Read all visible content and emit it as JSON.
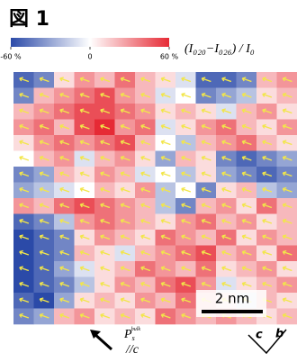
{
  "figure_label": "図 1",
  "chart_data": {
    "type": "heatmap",
    "title": "(I₀₂₀−I₀₂₆) / I₀",
    "colormap": [
      "#2b4aa8",
      "#ffffff",
      "#e62a35"
    ],
    "clim": [
      -60,
      60
    ],
    "cticks": [
      {
        "value": -60,
        "label": "-60 %"
      },
      0,
      {
        "value": 60,
        "label": "60 %"
      }
    ],
    "values": [
      [
        -50,
        -40,
        10,
        30,
        20,
        40,
        20,
        10,
        -10,
        -50,
        -50,
        -40,
        20,
        30
      ],
      [
        -40,
        20,
        30,
        40,
        50,
        30,
        20,
        -10,
        0,
        -40,
        -30,
        -20,
        10,
        20
      ],
      [
        20,
        30,
        40,
        50,
        50,
        40,
        30,
        10,
        20,
        10,
        -10,
        20,
        30,
        10
      ],
      [
        30,
        40,
        20,
        50,
        60,
        30,
        40,
        -10,
        10,
        30,
        40,
        20,
        10,
        30
      ],
      [
        10,
        30,
        40,
        30,
        40,
        50,
        20,
        0,
        -20,
        20,
        30,
        40,
        20,
        10
      ],
      [
        0,
        20,
        30,
        -10,
        20,
        30,
        10,
        -30,
        20,
        10,
        -40,
        -50,
        -40,
        -30
      ],
      [
        -40,
        -30,
        20,
        10,
        30,
        20,
        -10,
        0,
        -20,
        10,
        -30,
        -40,
        -50,
        -40
      ],
      [
        -30,
        -20,
        -10,
        0,
        20,
        10,
        30,
        -20,
        0,
        -40,
        10,
        20,
        -20,
        -30
      ],
      [
        30,
        20,
        40,
        50,
        40,
        30,
        20,
        -20,
        -40,
        20,
        30,
        10,
        40,
        20
      ],
      [
        -50,
        -40,
        -20,
        30,
        40,
        30,
        20,
        10,
        30,
        40,
        20,
        30,
        10,
        20
      ],
      [
        -60,
        -50,
        -40,
        10,
        30,
        20,
        10,
        40,
        30,
        20,
        40,
        10,
        30,
        20
      ],
      [
        -60,
        -50,
        -40,
        20,
        10,
        -10,
        20,
        30,
        40,
        50,
        20,
        30,
        10,
        40
      ],
      [
        -60,
        -50,
        -30,
        -10,
        10,
        20,
        40,
        30,
        20,
        40,
        10,
        20,
        30,
        10
      ],
      [
        -60,
        -50,
        -40,
        -20,
        10,
        30,
        20,
        40,
        50,
        30,
        -10,
        10,
        20,
        30
      ],
      [
        -50,
        -60,
        -30,
        10,
        20,
        10,
        30,
        20,
        40,
        20,
        10,
        -10,
        20,
        10
      ],
      [
        -40,
        -30,
        20,
        30,
        10,
        20,
        10,
        40,
        30,
        20,
        30,
        20,
        10,
        20
      ]
    ],
    "scale_bar": "2 nm",
    "polarization": {
      "symbol": "P",
      "sub": "s",
      "sup": "bulk",
      "direction": "//c"
    },
    "axes": [
      "c",
      "b"
    ]
  }
}
